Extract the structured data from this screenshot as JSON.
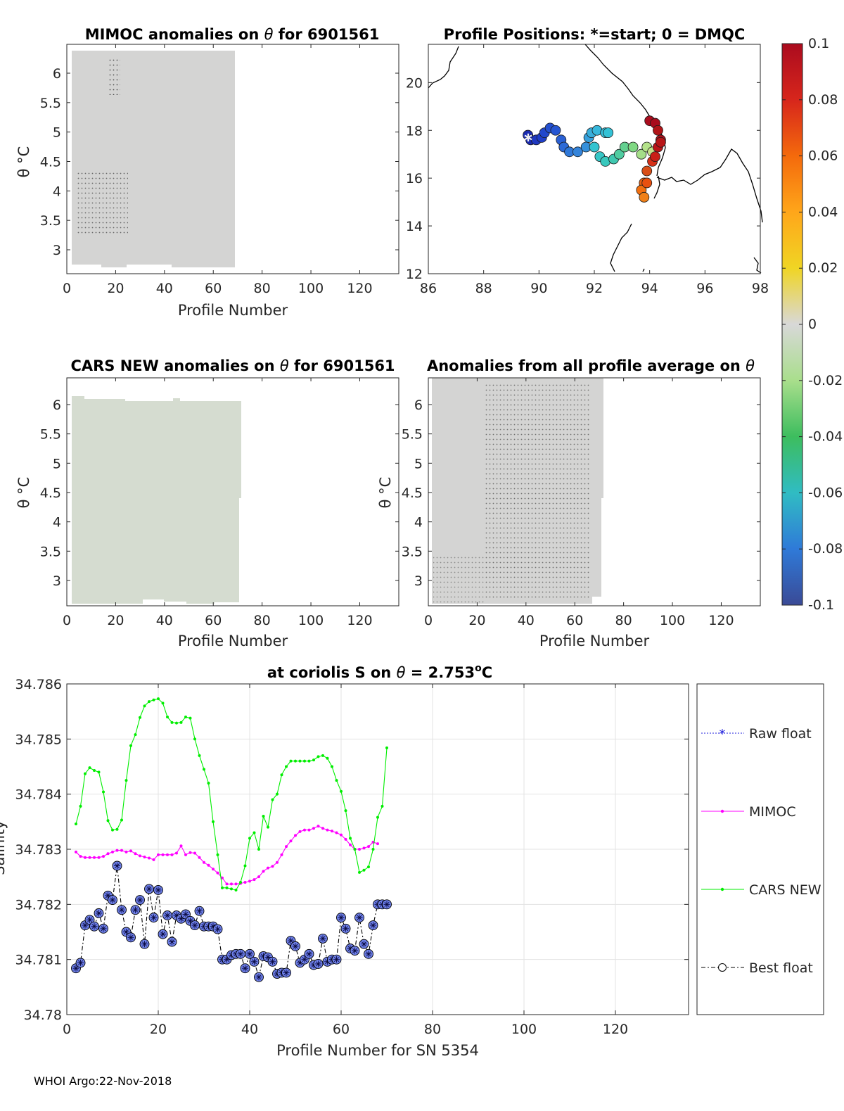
{
  "panels": {
    "p1": {
      "title_a": "MIMOC anomalies on ",
      "theta": "θ",
      "title_b": "  for 6901561",
      "xlabel": "Profile Number",
      "ylabel": "θ °C",
      "xticks": [
        "0",
        "20",
        "40",
        "60",
        "80",
        "100",
        "120"
      ],
      "yticks": [
        "6",
        "5.5",
        "5",
        "4.5",
        "4",
        "3.5",
        "3"
      ]
    },
    "p2": {
      "title": "Profile Positions: *=start; 0 = DMQC",
      "xticks": [
        "86",
        "88",
        "90",
        "92",
        "94",
        "96",
        "98"
      ],
      "yticks": [
        "20",
        "18",
        "16",
        "14",
        "12"
      ]
    },
    "p3": {
      "title_a": "CARS NEW anomalies on ",
      "theta": "θ",
      "title_b": " for 6901561",
      "xlabel": "Profile Number",
      "ylabel": "θ °C",
      "xticks": [
        "0",
        "20",
        "40",
        "60",
        "80",
        "100",
        "120"
      ],
      "yticks": [
        "6",
        "5.5",
        "5",
        "4.5",
        "4",
        "3.5",
        "3"
      ]
    },
    "p4": {
      "title_a": "Anomalies from all profile average on ",
      "theta": "θ",
      "xlabel": "Profile Number",
      "ylabel": "θ °C",
      "xticks": [
        "0",
        "20",
        "40",
        "60",
        "80",
        "100",
        "120"
      ],
      "yticks": [
        "6",
        "5.5",
        "5",
        "4.5",
        "4",
        "3.5",
        "3"
      ]
    }
  },
  "colorbar": {
    "labels": [
      "0.1",
      "0.08",
      "0.06",
      "0.04",
      "0.02",
      "0",
      "-0.02",
      "-0.04",
      "-0.06",
      "-0.08",
      "-0.1"
    ],
    "colors": [
      "#ab0b1e",
      "#d7261c",
      "#f46a0c",
      "#ffa61a",
      "#f0d524",
      "#d8d8d8",
      "#a9de8c",
      "#3dbd5e",
      "#30bcc3",
      "#2f7ad8",
      "#3a4a96"
    ]
  },
  "footer": "WHOI Argo:22-Nov-2018",
  "chart_data": {
    "type": "line",
    "title": "at coriolis S on θ = 2.753°C",
    "title_a": "at coriolis S on ",
    "theta": "θ",
    "title_b": " = 2.753",
    "title_sup": "o",
    "title_c": "C",
    "xlabel": "Profile Number for SN 5354",
    "ylabel": "Salinity",
    "xlim": [
      0,
      136
    ],
    "ylim": [
      34.78,
      34.786
    ],
    "xticks": [
      0,
      20,
      40,
      60,
      80,
      100,
      120
    ],
    "yticks": [
      "34.78",
      "34.781",
      "34.782",
      "34.783",
      "34.784",
      "34.785",
      "34.786"
    ],
    "legend_position": "outside-right",
    "series": [
      {
        "name": "Raw float",
        "color": "#1f1fdd",
        "x": [],
        "y": []
      },
      {
        "name": "MIMOC",
        "color": "#ff00ff",
        "x": [
          2,
          3,
          4,
          5,
          6,
          7,
          8,
          9,
          10,
          11,
          12,
          13,
          14,
          15,
          16,
          17,
          18,
          19,
          20,
          21,
          22,
          23,
          24,
          25,
          26,
          27,
          28,
          29,
          30,
          31,
          32,
          33,
          34,
          35,
          36,
          37,
          38,
          39,
          40,
          41,
          42,
          43,
          44,
          45,
          46,
          47,
          48,
          49,
          50,
          51,
          52,
          53,
          54,
          55,
          56,
          57,
          58,
          59,
          60,
          61,
          62,
          63,
          64,
          65,
          66,
          67,
          68
        ],
        "y": [
          34.78295,
          34.78287,
          34.78285,
          34.78285,
          34.78285,
          34.78285,
          34.78287,
          34.78292,
          34.78295,
          34.78298,
          34.78298,
          34.78295,
          34.78297,
          34.78292,
          34.78288,
          34.78286,
          34.78284,
          34.78281,
          34.7829,
          34.7829,
          34.7829,
          34.7829,
          34.78293,
          34.78306,
          34.7829,
          34.78294,
          34.78293,
          34.78285,
          34.78276,
          34.78271,
          34.78264,
          34.78257,
          34.78248,
          34.78237,
          34.78237,
          34.78237,
          34.78238,
          34.7824,
          34.78242,
          34.78245,
          34.7825,
          34.7826,
          34.78266,
          34.78269,
          34.78276,
          34.7829,
          34.78305,
          34.78315,
          34.78325,
          34.78332,
          34.78335,
          34.78335,
          34.78338,
          34.78342,
          34.78338,
          34.78335,
          34.78333,
          34.7833,
          34.78326,
          34.78318,
          34.78308,
          34.783,
          34.783,
          34.78302,
          34.78305,
          34.78313,
          34.7831
        ]
      },
      {
        "name": "CARS NEW",
        "color": "#00ee00",
        "x": [
          2,
          3,
          4,
          5,
          6,
          7,
          8,
          9,
          10,
          11,
          12,
          13,
          14,
          15,
          16,
          17,
          18,
          19,
          20,
          21,
          22,
          23,
          24,
          25,
          26,
          27,
          28,
          29,
          30,
          31,
          32,
          33,
          34,
          35,
          36,
          37,
          38,
          39,
          40,
          41,
          42,
          43,
          44,
          45,
          46,
          47,
          48,
          49,
          50,
          51,
          52,
          53,
          54,
          55,
          56,
          57,
          58,
          59,
          60,
          61,
          62,
          63,
          64,
          65,
          66,
          67,
          68,
          69,
          70
        ],
        "y": [
          34.78346,
          34.78378,
          34.78437,
          34.78448,
          34.78443,
          34.7844,
          34.78404,
          34.78352,
          34.78335,
          34.78336,
          34.78353,
          34.78425,
          34.78488,
          34.78508,
          34.78539,
          34.7856,
          34.78568,
          34.78571,
          34.78573,
          34.78565,
          34.7854,
          34.7853,
          34.78529,
          34.7853,
          34.7854,
          34.78538,
          34.785,
          34.7847,
          34.78445,
          34.7842,
          34.7835,
          34.7829,
          34.7823,
          34.7823,
          34.78228,
          34.78226,
          34.7824,
          34.7827,
          34.7832,
          34.7833,
          34.783,
          34.7836,
          34.7834,
          34.7839,
          34.784,
          34.78435,
          34.7845,
          34.7846,
          34.7846,
          34.7846,
          34.7846,
          34.7846,
          34.78462,
          34.78468,
          34.7847,
          34.78465,
          34.7845,
          34.78425,
          34.78405,
          34.7837,
          34.7832,
          34.783,
          34.78258,
          34.78262,
          34.78268,
          34.783,
          34.78358,
          34.78378,
          34.78484
        ]
      },
      {
        "name": "Best float",
        "color": "#000000",
        "x": [
          2,
          3,
          4,
          5,
          6,
          7,
          8,
          9,
          10,
          11,
          12,
          13,
          14,
          15,
          16,
          17,
          18,
          19,
          20,
          21,
          22,
          23,
          24,
          25,
          26,
          27,
          28,
          29,
          30,
          31,
          32,
          33,
          34,
          35,
          36,
          37,
          38,
          39,
          40,
          41,
          42,
          43,
          44,
          45,
          46,
          47,
          48,
          49,
          50,
          51,
          52,
          53,
          54,
          55,
          56,
          57,
          58,
          59,
          60,
          61,
          62,
          63,
          64,
          65,
          66,
          67,
          68,
          69,
          70
        ],
        "y": [
          34.78084,
          34.78094,
          34.78162,
          34.78172,
          34.7816,
          34.78184,
          34.78156,
          34.78216,
          34.78208,
          34.7827,
          34.7819,
          34.7815,
          34.7814,
          34.7819,
          34.78208,
          34.78128,
          34.78228,
          34.78176,
          34.78226,
          34.78146,
          34.7818,
          34.78132,
          34.7818,
          34.78174,
          34.78182,
          34.7817,
          34.78162,
          34.78188,
          34.7816,
          34.7816,
          34.7816,
          34.78155,
          34.781,
          34.781,
          34.78108,
          34.7811,
          34.7811,
          34.78084,
          34.7811,
          34.78096,
          34.78068,
          34.78106,
          34.78104,
          34.78096,
          34.78074,
          34.78076,
          34.78076,
          34.78134,
          34.78124,
          34.78094,
          34.781,
          34.7811,
          34.7809,
          34.78092,
          34.78138,
          34.78096,
          34.781,
          34.781,
          34.78176,
          34.78156,
          34.7812,
          34.78116,
          34.78176,
          34.78128,
          34.7811,
          34.78162,
          34.782,
          34.782,
          34.782
        ]
      }
    ]
  }
}
